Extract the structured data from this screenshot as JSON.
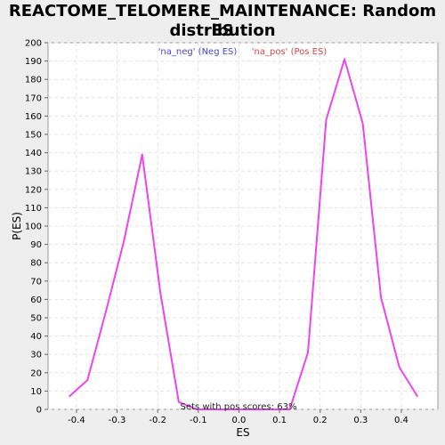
{
  "title_line1": "REACTOME_TELOMERE_MAINTENANCE: Random ES",
  "title_line2": "distribution",
  "chart_data": {
    "type": "line",
    "xlabel": "ES",
    "ylabel": "P(ES)",
    "xlim": [
      -0.47,
      0.49
    ],
    "ylim": [
      0,
      200
    ],
    "x_ticks": [
      -0.4,
      -0.3,
      -0.2,
      -0.1,
      0.0,
      0.1,
      0.2,
      0.3,
      0.4
    ],
    "x_tick_labels": [
      "-0.4",
      "-0.3",
      "-0.2",
      "-0.1",
      "0.0",
      "0.1",
      "0.2",
      "0.3",
      "0.4"
    ],
    "y_ticks": [
      0,
      10,
      20,
      30,
      40,
      50,
      60,
      70,
      80,
      90,
      100,
      110,
      120,
      130,
      140,
      150,
      160,
      170,
      180,
      190,
      200
    ],
    "grid": true,
    "series": [
      {
        "color": "#ee44ee",
        "x": [
          -0.418,
          -0.373,
          -0.328,
          -0.283,
          -0.238,
          -0.193,
          -0.148,
          -0.103,
          0.125,
          0.17,
          0.215,
          0.26,
          0.305,
          0.35,
          0.395,
          0.44
        ],
        "y": [
          7,
          16,
          53,
          92,
          139,
          63,
          4,
          0,
          0,
          31,
          158,
          191,
          156,
          61,
          23,
          7
        ]
      }
    ],
    "legend": {
      "placement": "top-center",
      "entries": [
        {
          "label": "'na_neg' (Neg ES)",
          "color": "#4444dd"
        },
        {
          "label": "'na_pos' (Pos ES)",
          "color": "#dd4444"
        }
      ]
    },
    "annotation": "Sets with pos scores: 63%"
  }
}
